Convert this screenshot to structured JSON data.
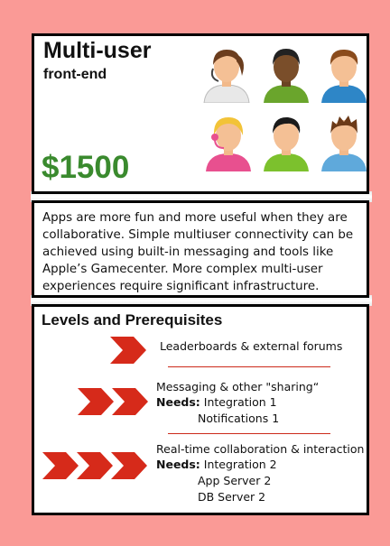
{
  "header": {
    "title": "Multi-user",
    "subtitle": "front-end",
    "price": "$1500",
    "price_color": "#3a8a2e",
    "avatars": [
      "woman-headset-icon",
      "man-dark-icon",
      "man-brown-icon",
      "woman-headset-blonde-icon",
      "man-black-hair-icon",
      "man-spiky-icon"
    ]
  },
  "description": "Apps are more fun and more useful when they are collaborative. Simple multiuser connectivity can be achieved using built-in messaging and tools like Apple’s Gamecenter. More complex multi-user experiences require significant infrastructure.",
  "levels": {
    "title": "Levels and Prerequisites",
    "accent": "#d62a1a",
    "items": [
      {
        "name": "Leaderboards & external forums",
        "needs_label": "",
        "needs": []
      },
      {
        "name": "Messaging & other \"sharing“",
        "needs_label": "Needs:",
        "needs": [
          "Integration 1",
          "Notifications 1"
        ]
      },
      {
        "name": "Real-time collaboration & interaction",
        "needs_label": "Needs:",
        "needs": [
          "Integration 2",
          "App Server 2",
          "DB Server 2"
        ]
      }
    ]
  }
}
